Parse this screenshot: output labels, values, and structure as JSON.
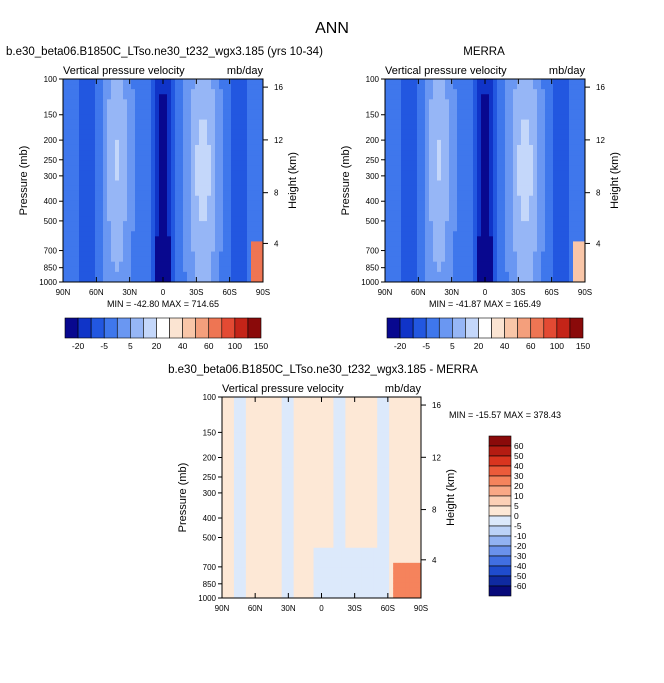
{
  "figure_title": "ANN",
  "chart_data": [
    {
      "type": "heatmap",
      "title": "b.e30_beta06.B1850C_LTso.ne30_t232_wgx3.185 (yrs 10-34)",
      "subtitle_left": "Vertical pressure velocity",
      "subtitle_right": "mb/day",
      "ylabel": "Pressure (mb)",
      "y2label": "Height (km)",
      "xticks": [
        "90N",
        "60N",
        "30N",
        "0",
        "30S",
        "60S",
        "90S"
      ],
      "yticks": [
        "100",
        "150",
        "200",
        "250",
        "300",
        "400",
        "500",
        "700",
        "850",
        "1000"
      ],
      "y2ticks": [
        "16",
        "12",
        "8",
        "4"
      ],
      "stats": "MIN = -42.80   MAX = 714.65",
      "colorbar_labels": [
        "-20",
        "-5",
        "5",
        "20",
        "40",
        "60",
        "100",
        "150"
      ]
    },
    {
      "type": "heatmap",
      "title": "MERRA",
      "subtitle_left": "Vertical pressure velocity",
      "subtitle_right": "mb/day",
      "ylabel": "Pressure (mb)",
      "y2label": "Height (km)",
      "xticks": [
        "90N",
        "60N",
        "30N",
        "0",
        "30S",
        "60S",
        "90S"
      ],
      "yticks": [
        "100",
        "150",
        "200",
        "250",
        "300",
        "400",
        "500",
        "700",
        "850",
        "1000"
      ],
      "y2ticks": [
        "16",
        "12",
        "8",
        "4"
      ],
      "stats": "MIN = -41.87   MAX = 165.49",
      "colorbar_labels": [
        "-20",
        "-5",
        "5",
        "20",
        "40",
        "60",
        "100",
        "150"
      ]
    },
    {
      "type": "heatmap",
      "title": "b.e30_beta06.B1850C_LTso.ne30_t232_wgx3.185 - MERRA",
      "subtitle_left": "Vertical pressure velocity",
      "subtitle_right": "mb/day",
      "ylabel": "Pressure (mb)",
      "y2label": "Height (km)",
      "xticks": [
        "90N",
        "60N",
        "30N",
        "0",
        "30S",
        "60S",
        "90S"
      ],
      "yticks": [
        "100",
        "150",
        "200",
        "250",
        "300",
        "400",
        "500",
        "700",
        "850",
        "1000"
      ],
      "y2ticks": [
        "16",
        "12",
        "8",
        "4"
      ],
      "stats": "MIN = -15.57   MAX = 378.43",
      "colorbar_labels": [
        "60",
        "50",
        "40",
        "30",
        "20",
        "10",
        "5",
        "0",
        "-5",
        "-10",
        "-20",
        "-30",
        "-40",
        "-50",
        "-60"
      ]
    }
  ],
  "colors": {
    "main_colorbar": [
      "#08088f",
      "#1034c8",
      "#2257e0",
      "#3f77ec",
      "#6a97f2",
      "#96b6f6",
      "#c4d7fa",
      "#ffffff",
      "#fbe4d2",
      "#f9c6a8",
      "#f49f7c",
      "#ee7553",
      "#e34a33",
      "#c42418",
      "#8a0a0a"
    ],
    "diff_colorbar": [
      "#8a0a0a",
      "#b41c12",
      "#d9351f",
      "#ec5b3a",
      "#f5835c",
      "#f9a886",
      "#fcd0b6",
      "#fde8d6",
      "#dce9fb",
      "#bcd2f7",
      "#92b2f2",
      "#6a91ec",
      "#416fe2",
      "#1f4ccd",
      "#0f2aa0",
      "#070a7a"
    ]
  }
}
